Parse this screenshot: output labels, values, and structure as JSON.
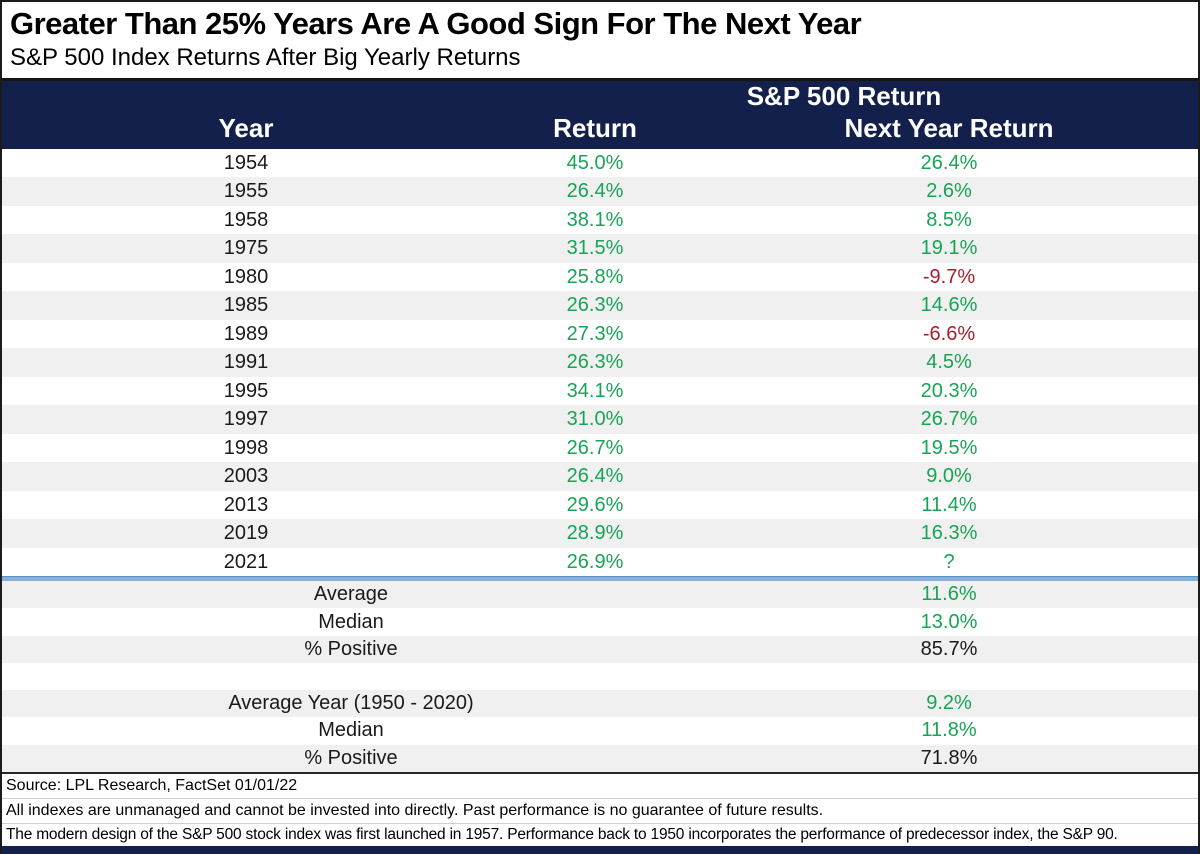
{
  "title": "Greater Than 25% Years Are A Good Sign For The Next Year",
  "subtitle": "S&P 500 Index Returns After Big Yearly Returns",
  "table": {
    "group_header": "S&P 500 Return",
    "columns": [
      "Year",
      "Return",
      "Next Year Return"
    ],
    "rows": [
      {
        "year": "1954",
        "return": "45.0%",
        "next": "26.4%"
      },
      {
        "year": "1955",
        "return": "26.4%",
        "next": "2.6%"
      },
      {
        "year": "1958",
        "return": "38.1%",
        "next": "8.5%"
      },
      {
        "year": "1975",
        "return": "31.5%",
        "next": "19.1%"
      },
      {
        "year": "1980",
        "return": "25.8%",
        "next": "-9.7%"
      },
      {
        "year": "1985",
        "return": "26.3%",
        "next": "14.6%"
      },
      {
        "year": "1989",
        "return": "27.3%",
        "next": "-6.6%"
      },
      {
        "year": "1991",
        "return": "26.3%",
        "next": "4.5%"
      },
      {
        "year": "1995",
        "return": "34.1%",
        "next": "20.3%"
      },
      {
        "year": "1997",
        "return": "31.0%",
        "next": "26.7%"
      },
      {
        "year": "1998",
        "return": "26.7%",
        "next": "19.5%"
      },
      {
        "year": "2003",
        "return": "26.4%",
        "next": "9.0%"
      },
      {
        "year": "2013",
        "return": "29.6%",
        "next": "11.4%"
      },
      {
        "year": "2019",
        "return": "28.9%",
        "next": "16.3%"
      },
      {
        "year": "2021",
        "return": "26.9%",
        "next": "?"
      }
    ],
    "summary1": [
      {
        "label": "Average",
        "value": "11.6%",
        "color": "green"
      },
      {
        "label": "Median",
        "value": "13.0%",
        "color": "green"
      },
      {
        "label": "% Positive",
        "value": "85.7%",
        "color": "black"
      }
    ],
    "summary2": [
      {
        "label": "Average Year (1950 - 2020)",
        "value": "9.2%",
        "color": "green"
      },
      {
        "label": "Median",
        "value": "11.8%",
        "color": "green"
      },
      {
        "label": "% Positive",
        "value": "71.8%",
        "color": "black"
      }
    ]
  },
  "footer": {
    "source": "Source: LPL Research, FactSet 01/01/22",
    "disclaimer1": "All indexes are unmanaged and cannot be invested into directly. Past performance is no guarantee of future results.",
    "disclaimer2": "The modern design of the S&P 500 stock index was first launched in 1957. Performance back to 1950 incorporates the performance of predecessor index, the S&P 90."
  },
  "colors": {
    "navy": "#13204b",
    "green": "#19a356",
    "red": "#a81e2b",
    "row_alt": "#f0f0f0",
    "divider_blue": "#86afd9",
    "border": "#1b1b1b"
  },
  "chart_data": {
    "type": "table",
    "title": "Greater Than 25% Years Are A Good Sign For The Next Year",
    "subtitle": "S&P 500 Index Returns After Big Yearly Returns",
    "group_header": "S&P 500 Return",
    "columns": [
      "Year",
      "Return",
      "Next Year Return"
    ],
    "rows": [
      [
        1954,
        45.0,
        26.4
      ],
      [
        1955,
        26.4,
        2.6
      ],
      [
        1958,
        38.1,
        8.5
      ],
      [
        1975,
        31.5,
        19.1
      ],
      [
        1980,
        25.8,
        -9.7
      ],
      [
        1985,
        26.3,
        14.6
      ],
      [
        1989,
        27.3,
        -6.6
      ],
      [
        1991,
        26.3,
        4.5
      ],
      [
        1995,
        34.1,
        20.3
      ],
      [
        1997,
        31.0,
        26.7
      ],
      [
        1998,
        26.7,
        19.5
      ],
      [
        2003,
        26.4,
        9.0
      ],
      [
        2013,
        29.6,
        11.4
      ],
      [
        2019,
        28.9,
        16.3
      ],
      [
        2021,
        26.9,
        null
      ]
    ],
    "summary_next_year": {
      "average": 11.6,
      "median": 13.0,
      "pct_positive": 85.7
    },
    "summary_average_year_1950_2020": {
      "average": 9.2,
      "median": 11.8,
      "pct_positive": 71.8
    }
  }
}
